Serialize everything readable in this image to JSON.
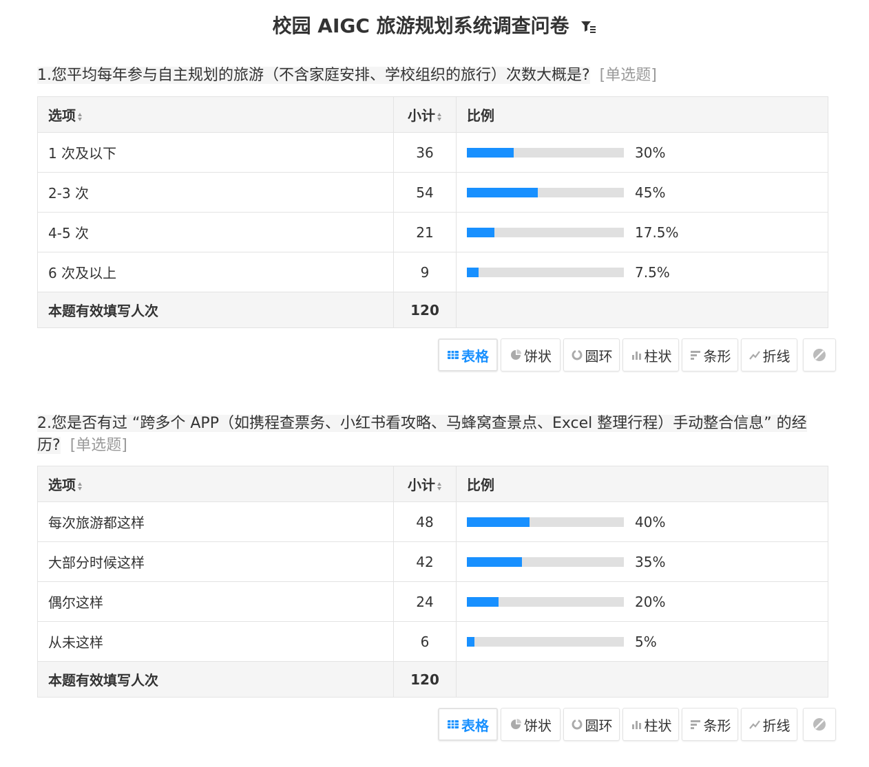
{
  "page": {
    "title": "校园 AIGC 旅游规划系统调查问卷"
  },
  "table_headers": {
    "option": "选项",
    "count": "小计",
    "ratio": "比例"
  },
  "questions": [
    {
      "title": "1.您平均每年参与自主规划的旅游（不含家庭安排、学校组织的旅行）次数大概是?",
      "type": "[单选题]",
      "rows": [
        {
          "label": "1 次及以下",
          "count": "36",
          "percent": "30%",
          "fill": 0.3
        },
        {
          "label": "2-3 次",
          "count": "54",
          "percent": "45%",
          "fill": 0.45
        },
        {
          "label": "4-5 次",
          "count": "21",
          "percent": "17.5%",
          "fill": 0.175
        },
        {
          "label": "6 次及以上",
          "count": "9",
          "percent": "7.5%",
          "fill": 0.075
        }
      ],
      "total_label": "本题有效填写人次",
      "total": "120"
    },
    {
      "title": "2.您是否有过 “跨多个 APP（如携程查票务、小红书看攻略、马蜂窝查景点、Excel 整理行程）手动整合信息” 的经历?",
      "type": "[单选题]",
      "rows": [
        {
          "label": "每次旅游都这样",
          "count": "48",
          "percent": "40%",
          "fill": 0.4
        },
        {
          "label": "大部分时候这样",
          "count": "42",
          "percent": "35%",
          "fill": 0.35
        },
        {
          "label": "偶尔这样",
          "count": "24",
          "percent": "20%",
          "fill": 0.2
        },
        {
          "label": "从未这样",
          "count": "6",
          "percent": "5%",
          "fill": 0.05
        }
      ],
      "total_label": "本题有效填写人次",
      "total": "120"
    }
  ],
  "view_buttons": {
    "table": "表格",
    "pie": "饼状",
    "ring": "圆环",
    "column": "柱状",
    "bar": "条形",
    "line": "折线"
  },
  "icons": {
    "title": "filter-list-icon",
    "table": "grid-table-icon",
    "pie": "pie-chart-icon",
    "ring": "donut-chart-icon",
    "column": "column-chart-icon",
    "bar": "bar-chart-icon",
    "line": "line-chart-icon",
    "hide": "hide-chart-icon"
  },
  "colors": {
    "accent": "#1890ff",
    "bar_track": "#e0e0e0",
    "header_bg": "#f5f5f5",
    "muted_text": "#999999"
  }
}
